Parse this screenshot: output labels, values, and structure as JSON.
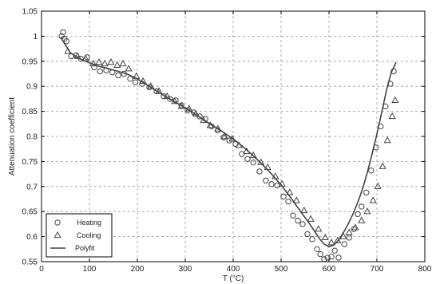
{
  "chart_data": {
    "type": "scatter",
    "xlabel": "T (°C)",
    "ylabel": "Attenuation coefficient",
    "xlim": [
      0,
      800
    ],
    "ylim": [
      0.55,
      1.05
    ],
    "xticks": [
      0,
      100,
      200,
      300,
      400,
      500,
      600,
      700,
      800
    ],
    "yticks": [
      0.55,
      0.6,
      0.65,
      0.7,
      0.75,
      0.8,
      0.85,
      0.9,
      0.95,
      1,
      1.05
    ],
    "xtick_labels": [
      "0",
      "100",
      "200",
      "300",
      "400",
      "500",
      "600",
      "700",
      "800"
    ],
    "ytick_labels": [
      "0.55",
      "0.6",
      "0.65",
      "0.7",
      "0.75",
      "0.8",
      "0.85",
      "0.9",
      "0.95",
      "1",
      "1.05"
    ],
    "grid": true,
    "legend_position": "bottom-left",
    "colors": {
      "series": "#444444",
      "grid": "#9a9a9a",
      "axis": "#000000"
    },
    "series": [
      {
        "name": "Heating",
        "marker": "circle",
        "x": [
          42,
          45,
          48,
          52,
          62,
          72,
          82,
          95,
          110,
          122,
          135,
          148,
          160,
          172,
          185,
          196,
          210,
          225,
          240,
          255,
          268,
          280,
          292,
          305,
          318,
          330,
          342,
          355,
          368,
          380,
          392,
          405,
          418,
          430,
          442,
          455,
          468,
          480,
          492,
          505,
          515,
          525,
          535,
          545,
          555,
          565,
          575,
          582,
          590,
          597,
          605,
          612,
          620,
          632,
          642,
          652,
          660,
          668,
          678,
          688,
          698,
          708,
          718,
          728,
          735
        ],
        "y": [
          1.0,
          1.008,
          0.995,
          0.99,
          0.96,
          0.962,
          0.955,
          0.958,
          0.938,
          0.93,
          0.932,
          0.928,
          0.922,
          0.925,
          0.915,
          0.908,
          0.905,
          0.898,
          0.89,
          0.88,
          0.875,
          0.872,
          0.862,
          0.852,
          0.848,
          0.84,
          0.835,
          0.82,
          0.812,
          0.798,
          0.792,
          0.785,
          0.765,
          0.755,
          0.748,
          0.73,
          0.712,
          0.705,
          0.702,
          0.68,
          0.67,
          0.642,
          0.632,
          0.625,
          0.605,
          0.595,
          0.575,
          0.565,
          0.555,
          0.558,
          0.56,
          0.572,
          0.558,
          0.585,
          0.598,
          0.615,
          0.645,
          0.66,
          0.688,
          0.732,
          0.778,
          0.82,
          0.86,
          0.905,
          0.93
        ]
      },
      {
        "name": "Cooling",
        "marker": "triangle",
        "x": [
          55,
          75,
          92,
          108,
          120,
          132,
          145,
          158,
          170,
          182,
          198,
          212,
          228,
          245,
          262,
          278,
          292,
          308,
          322,
          338,
          352,
          368,
          382,
          398,
          412,
          428,
          442,
          458,
          472,
          488,
          502,
          518,
          532,
          548,
          562,
          578,
          592,
          605,
          618,
          630,
          642,
          655,
          668,
          680,
          692,
          702,
          712,
          722,
          732,
          738
        ],
        "y": [
          0.97,
          0.96,
          0.955,
          0.945,
          0.948,
          0.945,
          0.948,
          0.942,
          0.945,
          0.935,
          0.92,
          0.91,
          0.9,
          0.89,
          0.88,
          0.87,
          0.86,
          0.855,
          0.845,
          0.832,
          0.822,
          0.815,
          0.8,
          0.795,
          0.782,
          0.77,
          0.762,
          0.748,
          0.738,
          0.72,
          0.705,
          0.688,
          0.672,
          0.652,
          0.635,
          0.615,
          0.598,
          0.588,
          0.592,
          0.6,
          0.608,
          0.618,
          0.632,
          0.65,
          0.672,
          0.7,
          0.74,
          0.792,
          0.84,
          0.872
        ]
      },
      {
        "name": "Polyfit",
        "marker": "line",
        "x": [
          40,
          60,
          80,
          100,
          120,
          140,
          160,
          180,
          200,
          220,
          240,
          260,
          280,
          300,
          320,
          340,
          360,
          380,
          400,
          420,
          440,
          460,
          480,
          500,
          520,
          540,
          560,
          580,
          590,
          600,
          610,
          620,
          630,
          640,
          650,
          660,
          670,
          680,
          690,
          700,
          710,
          720,
          730,
          740
        ],
        "y": [
          0.998,
          0.967,
          0.955,
          0.947,
          0.94,
          0.935,
          0.93,
          0.924,
          0.915,
          0.903,
          0.891,
          0.879,
          0.868,
          0.857,
          0.845,
          0.832,
          0.82,
          0.808,
          0.795,
          0.78,
          0.763,
          0.745,
          0.725,
          0.703,
          0.678,
          0.651,
          0.625,
          0.596,
          0.585,
          0.58,
          0.583,
          0.593,
          0.608,
          0.625,
          0.645,
          0.668,
          0.695,
          0.728,
          0.765,
          0.805,
          0.848,
          0.892,
          0.928,
          0.948
        ]
      }
    ]
  }
}
